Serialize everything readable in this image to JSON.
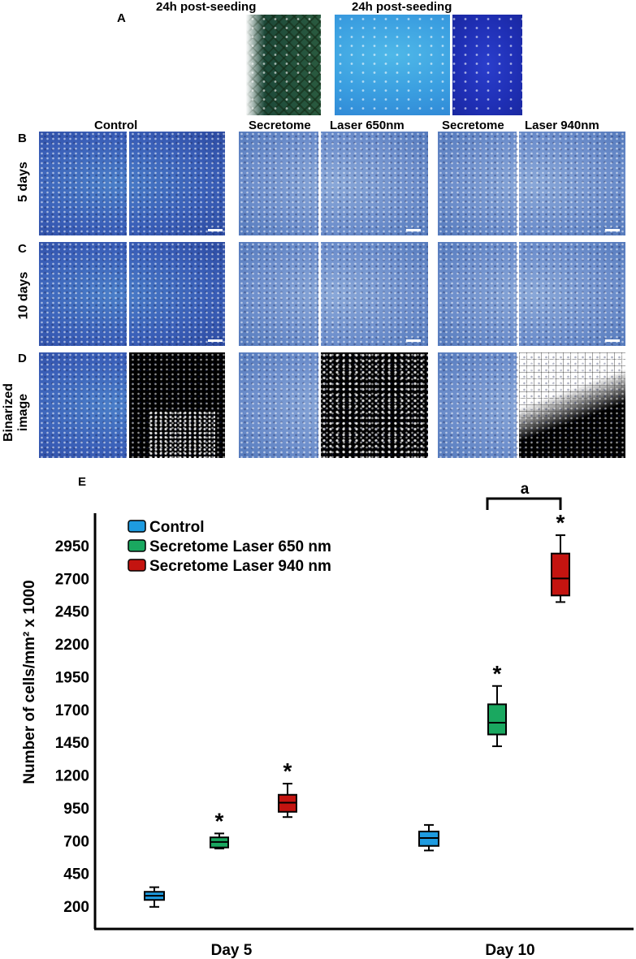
{
  "panels": {
    "a": {
      "letter": "A",
      "left_title": "24h post-seeding",
      "right_title": "24h post-seeding"
    },
    "b": {
      "letter": "B",
      "row_label": "5 days"
    },
    "c": {
      "letter": "C",
      "row_label": "10 days"
    },
    "d": {
      "letter": "D",
      "row_label": "Binarized image"
    },
    "e": {
      "letter": "E"
    },
    "column_titles": {
      "control": "Control",
      "s650_left": "Secretome",
      "s650_right": "Laser 650nm",
      "s940_left": "Secretome",
      "s940_right": "Laser 940nm"
    }
  },
  "colors": {
    "control": "#1e9be0",
    "laser650": "#1aa860",
    "laser940": "#c41410"
  },
  "chart_data": {
    "type": "box",
    "categories": [
      "Day 5",
      "Day 10"
    ],
    "ylabel": "Number of cells/mm² x 1000",
    "yticks": [
      200,
      450,
      700,
      950,
      1200,
      1450,
      1700,
      1950,
      2200,
      2450,
      2700,
      2950
    ],
    "ylim": [
      0,
      3300
    ],
    "legend_position": "top-left",
    "series": [
      {
        "name": "Control",
        "boxes": [
          {
            "category": "Day 5",
            "min": 195,
            "q1": 248,
            "median": 280,
            "q3": 310,
            "max": 345,
            "marker": ""
          },
          {
            "category": "Day 10",
            "min": 625,
            "q1": 660,
            "median": 720,
            "q3": 770,
            "max": 820,
            "marker": ""
          }
        ]
      },
      {
        "name": "Secretome Laser 650 nm",
        "boxes": [
          {
            "category": "Day 5",
            "min": 640,
            "q1": 648,
            "median": 690,
            "q3": 725,
            "max": 755,
            "marker": "*"
          },
          {
            "category": "Day 10",
            "min": 1420,
            "q1": 1510,
            "median": 1600,
            "q3": 1740,
            "max": 1880,
            "marker": "*"
          }
        ]
      },
      {
        "name": "Secretome Laser 940 nm",
        "boxes": [
          {
            "category": "Day 5",
            "min": 880,
            "q1": 920,
            "median": 990,
            "q3": 1050,
            "max": 1135,
            "marker": "*"
          },
          {
            "category": "Day 10",
            "min": 2520,
            "q1": 2570,
            "median": 2700,
            "q3": 2890,
            "max": 3030,
            "marker": "*"
          }
        ]
      }
    ],
    "annotations": [
      {
        "text": "a",
        "type": "bracket",
        "from": "Secretome Laser 650 nm, Day 10",
        "to": "Secretome Laser 940 nm, Day 10"
      }
    ]
  }
}
